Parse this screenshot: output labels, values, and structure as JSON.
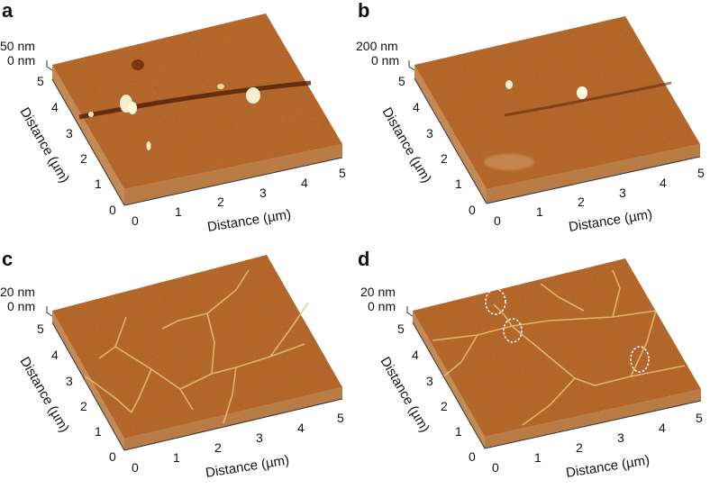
{
  "colors": {
    "surface_base": "#b5652a",
    "surface_dark": "#8f4716",
    "surface_light": "#d9954f",
    "side_wall": "#c48a55",
    "feature_bright": "#f7f2c8",
    "axis_line": "#333333",
    "annotation_circle": "#ffffff"
  },
  "panels": [
    {
      "letter": "a",
      "z_top_label": "50 nm",
      "z_zero_label": "0 nm",
      "x_axis_title": "Distance (µm)",
      "y_axis_title": "Distance (µm)",
      "x_ticks": [
        "0",
        "1",
        "2",
        "3",
        "4",
        "5"
      ],
      "y_ticks": [
        "0",
        "1",
        "2",
        "3",
        "4",
        "5"
      ],
      "features": "trench with bright particles",
      "annotation_circle_count": 0
    },
    {
      "letter": "b",
      "z_top_label": "200 nm",
      "z_zero_label": "0 nm",
      "x_axis_title": "Distance (µm)",
      "y_axis_title": "Distance (µm)",
      "x_ticks": [
        "0",
        "1",
        "2",
        "3",
        "4",
        "5"
      ],
      "y_ticks": [
        "0",
        "1",
        "2",
        "3",
        "4",
        "5"
      ],
      "features": "faint trench with two particles",
      "annotation_circle_count": 0
    },
    {
      "letter": "c",
      "z_top_label": "20 nm",
      "z_zero_label": "0 nm",
      "x_axis_title": "Distance (µm)",
      "y_axis_title": "Distance (µm)",
      "x_ticks": [
        "0",
        "1",
        "2",
        "3",
        "4",
        "5"
      ],
      "y_ticks": [
        "0",
        "1",
        "2",
        "3",
        "4",
        "5"
      ],
      "features": "branching wrinkle network",
      "annotation_circle_count": 0
    },
    {
      "letter": "d",
      "z_top_label": "20 nm",
      "z_zero_label": "0 nm",
      "x_axis_title": "Distance (µm)",
      "y_axis_title": "Distance (µm)",
      "x_ticks": [
        "0",
        "1",
        "2",
        "3",
        "4",
        "5"
      ],
      "y_ticks": [
        "0",
        "1",
        "2",
        "3",
        "4",
        "5"
      ],
      "features": "wrinkle network with circled junctions",
      "annotation_circle_count": 3
    }
  ]
}
